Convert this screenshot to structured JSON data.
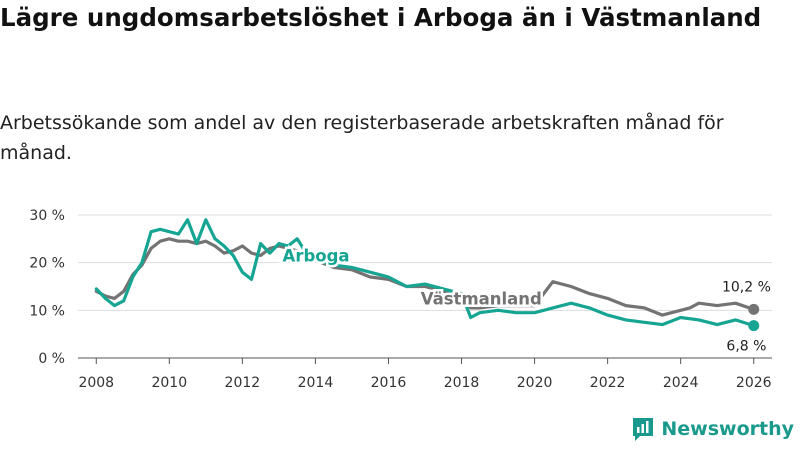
{
  "header": {
    "title": "Lägre ungdomsarbetslöshet i Arboga än i Västmanland",
    "subtitle": "Arbetssökande som andel av den registerbaserade arbetskraften månad för månad."
  },
  "brand": {
    "name": "Newsworthy"
  },
  "colors": {
    "arboga": "#17a593",
    "vastmanland": "#737373",
    "grid": "#dddddd",
    "axis": "#555555"
  },
  "chart_data": {
    "type": "line",
    "title": "Lägre ungdomsarbetslöshet i Arboga än i Västmanland",
    "xlabel": "",
    "ylabel": "",
    "xlim": [
      2007.5,
      2026.5
    ],
    "ylim": [
      0,
      30
    ],
    "x_ticks": [
      2008,
      2010,
      2012,
      2014,
      2016,
      2018,
      2020,
      2022,
      2024,
      2026
    ],
    "x_tick_labels": [
      "2008",
      "2010",
      "2012",
      "2014",
      "2016",
      "2018",
      "2020",
      "2022",
      "2024",
      "2026"
    ],
    "y_ticks": [
      0,
      10,
      20,
      30
    ],
    "y_tick_labels": [
      "0 %",
      "10 %",
      "20 %",
      "30 %"
    ],
    "grid": true,
    "series": [
      {
        "name": "Arboga",
        "label": "Arboga",
        "end_label": "6,8 %",
        "end_value": 6.8,
        "x": [
          2008.0,
          2008.25,
          2008.5,
          2008.75,
          2009.0,
          2009.25,
          2009.5,
          2009.75,
          2010.0,
          2010.25,
          2010.5,
          2010.75,
          2011.0,
          2011.25,
          2011.5,
          2011.75,
          2012.0,
          2012.25,
          2012.5,
          2012.75,
          2013.0,
          2013.25,
          2013.5,
          2013.75,
          2014.0,
          2014.5,
          2015.0,
          2015.5,
          2016.0,
          2016.5,
          2017.0,
          2017.5,
          2018.0,
          2018.25,
          2018.5,
          2019.0,
          2019.5,
          2020.0,
          2020.5,
          2021.0,
          2021.5,
          2022.0,
          2022.5,
          2023.0,
          2023.5,
          2024.0,
          2024.5,
          2025.0,
          2025.5,
          2026.0
        ],
        "values": [
          14.5,
          12.5,
          11.0,
          12.0,
          17.0,
          20.0,
          26.5,
          27.0,
          26.5,
          26.0,
          29.0,
          24.0,
          29.0,
          25.0,
          23.5,
          21.5,
          18.0,
          16.5,
          24.0,
          22.0,
          24.0,
          23.5,
          25.0,
          22.0,
          20.5,
          19.5,
          19.0,
          18.0,
          17.0,
          15.0,
          15.5,
          14.5,
          13.5,
          8.5,
          9.5,
          10.0,
          9.5,
          9.5,
          10.5,
          11.5,
          10.5,
          9.0,
          8.0,
          7.5,
          7.0,
          8.5,
          8.0,
          7.0,
          8.0,
          6.8
        ]
      },
      {
        "name": "Västmanland",
        "label": "Västmanland",
        "end_label": "10,2 %",
        "end_value": 10.2,
        "x": [
          2008.0,
          2008.25,
          2008.5,
          2008.75,
          2009.0,
          2009.25,
          2009.5,
          2009.75,
          2010.0,
          2010.25,
          2010.5,
          2010.75,
          2011.0,
          2011.25,
          2011.5,
          2011.75,
          2012.0,
          2012.25,
          2012.5,
          2012.75,
          2013.0,
          2013.5,
          2014.0,
          2014.5,
          2015.0,
          2015.5,
          2016.0,
          2016.5,
          2017.0,
          2017.5,
          2018.0,
          2018.25,
          2018.5,
          2019.0,
          2019.5,
          2020.0,
          2020.5,
          2021.0,
          2021.5,
          2022.0,
          2022.5,
          2023.0,
          2023.5,
          2024.0,
          2024.25,
          2024.5,
          2025.0,
          2025.5,
          2026.0
        ],
        "values": [
          14.0,
          13.0,
          12.5,
          14.0,
          17.5,
          19.5,
          23.0,
          24.5,
          25.0,
          24.5,
          24.5,
          24.0,
          24.5,
          23.5,
          22.0,
          22.5,
          23.5,
          22.0,
          21.5,
          23.0,
          23.5,
          22.5,
          20.5,
          19.0,
          18.5,
          17.0,
          16.5,
          15.0,
          15.0,
          14.0,
          13.5,
          10.5,
          10.5,
          11.0,
          11.0,
          11.0,
          16.0,
          15.0,
          13.5,
          12.5,
          11.0,
          10.5,
          9.0,
          10.0,
          10.5,
          11.5,
          11.0,
          11.5,
          10.2
        ]
      }
    ]
  }
}
